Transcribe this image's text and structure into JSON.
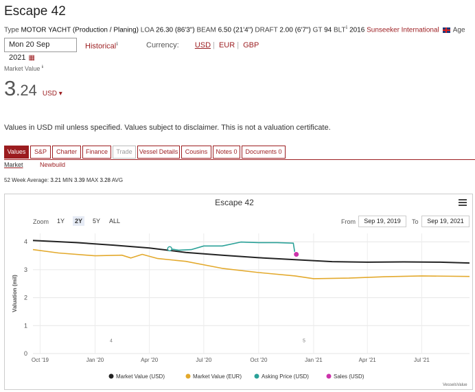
{
  "header": {
    "title": "Escape 42",
    "specs": {
      "type_label": "Type",
      "type_value": "MOTOR YACHT (Production / Planing)",
      "loa_label": "LOA",
      "loa_value": "26.30 (86'3\")",
      "beam_label": "BEAM",
      "beam_value": "6.50 (21'4\")",
      "draft_label": "DRAFT",
      "draft_value": "2.00 (6'7\")",
      "gt_label": "GT",
      "gt_value": "94",
      "blt_label": "BLT",
      "blt_value": "2016",
      "builder": "Sunseeker International",
      "age_label": "Age"
    }
  },
  "controls": {
    "date": "Mon 20 Sep 2021",
    "historical_label": "Historical",
    "currency_label": "Currency:",
    "currencies": [
      "USD",
      "EUR",
      "GBP"
    ],
    "active_currency": "USD"
  },
  "market_value": {
    "label": "Market Value",
    "int_part": "3",
    "dec_part": ".24",
    "unit": "USD ▾"
  },
  "disclaimer": "Values in USD mil unless specified. Values subject to disclaimer. This is not a valuation certificate.",
  "tabs": [
    "Values",
    "S&P",
    "Charter",
    "Finance",
    "Trade",
    "Vessel Details",
    "Cousins",
    "Notes 0",
    "Documents 0"
  ],
  "subtabs": [
    "Market",
    "Newbuild"
  ],
  "week_stats": {
    "prefix": "52 Week Average:",
    "min_value": "3.21",
    "min_label": "MIN",
    "max_value": "3.39",
    "max_label": "MAX",
    "avg_value": "3.28",
    "avg_label": "AVG"
  },
  "chart_controls": {
    "zoom_label": "Zoom",
    "zoom_options": [
      "1Y",
      "2Y",
      "5Y",
      "ALL"
    ],
    "active_zoom": "2Y",
    "from_label": "From",
    "from_value": "Sep 19, 2019",
    "to_label": "To",
    "to_value": "Sep 19, 2021"
  },
  "credit": "VesselsValue",
  "colors": {
    "brand": "#9b1c1f",
    "market_usd": "#222222",
    "market_eur": "#e3a92c",
    "asking": "#2aa198",
    "sales": "#cc33aa"
  },
  "chart_data": {
    "type": "line",
    "title": "Escape 42",
    "ylabel": "Valuation (mil)",
    "xlabel": "",
    "x_ticks": [
      "Oct '19",
      "Jan '20",
      "Apr '20",
      "Jul '20",
      "Oct '20",
      "Jan '21",
      "Apr '21",
      "Jul '21"
    ],
    "y_ticks": [
      0,
      1,
      2,
      3,
      4
    ],
    "ylim": [
      0,
      4.3
    ],
    "xlim": [
      "2019-09-19",
      "2021-09-19"
    ],
    "grid": true,
    "legend_position": "bottom",
    "markers": [
      {
        "x": "2020-01-28",
        "label": "4"
      },
      {
        "x": "2020-12-16",
        "label": "5"
      }
    ],
    "series": [
      {
        "name": "Market Value (USD)",
        "type": "line",
        "points": [
          [
            "2019-09-19",
            4.05
          ],
          [
            "2019-12-01",
            3.97
          ],
          [
            "2020-02-01",
            3.88
          ],
          [
            "2020-04-01",
            3.78
          ],
          [
            "2020-06-01",
            3.62
          ],
          [
            "2020-08-01",
            3.52
          ],
          [
            "2020-10-01",
            3.43
          ],
          [
            "2020-12-01",
            3.36
          ],
          [
            "2021-02-01",
            3.29
          ],
          [
            "2021-04-01",
            3.27
          ],
          [
            "2021-06-01",
            3.28
          ],
          [
            "2021-08-01",
            3.27
          ],
          [
            "2021-09-19",
            3.24
          ]
        ]
      },
      {
        "name": "Market Value (EUR)",
        "type": "line",
        "points": [
          [
            "2019-09-19",
            3.72
          ],
          [
            "2019-11-01",
            3.6
          ],
          [
            "2020-01-01",
            3.5
          ],
          [
            "2020-02-15",
            3.52
          ],
          [
            "2020-03-01",
            3.42
          ],
          [
            "2020-03-20",
            3.55
          ],
          [
            "2020-04-15",
            3.4
          ],
          [
            "2020-06-01",
            3.3
          ],
          [
            "2020-08-01",
            3.05
          ],
          [
            "2020-10-01",
            2.9
          ],
          [
            "2020-12-01",
            2.78
          ],
          [
            "2021-01-01",
            2.68
          ],
          [
            "2021-03-01",
            2.7
          ],
          [
            "2021-05-01",
            2.75
          ],
          [
            "2021-07-01",
            2.78
          ],
          [
            "2021-09-19",
            2.76
          ]
        ]
      },
      {
        "name": "Asking Price (USD)",
        "type": "line",
        "points": [
          [
            "2020-05-05",
            3.75
          ],
          [
            "2020-05-20",
            3.7
          ],
          [
            "2020-06-10",
            3.72
          ],
          [
            "2020-07-01",
            3.85
          ],
          [
            "2020-08-01",
            3.85
          ],
          [
            "2020-09-01",
            3.99
          ],
          [
            "2020-10-01",
            3.97
          ],
          [
            "2020-11-01",
            3.97
          ],
          [
            "2020-11-28",
            3.95
          ],
          [
            "2020-12-01",
            3.55
          ]
        ]
      },
      {
        "name": "Sales (USD)",
        "type": "scatter",
        "points": [
          [
            "2020-12-03",
            3.55
          ]
        ]
      }
    ]
  }
}
